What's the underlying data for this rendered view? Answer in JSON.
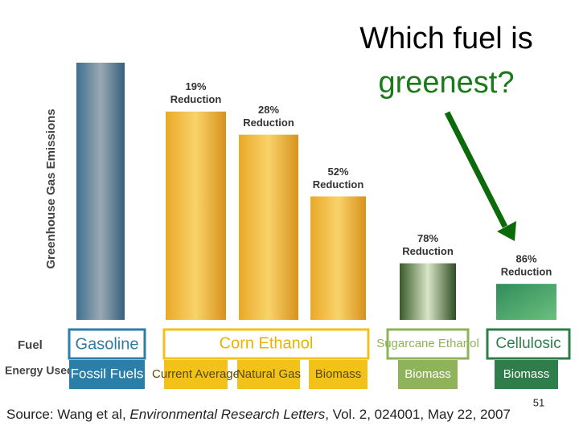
{
  "title": {
    "line1": "Which fuel is",
    "line2": "greenest?"
  },
  "chart_data": {
    "type": "bar",
    "ylabel": "Greenhouse Gas Emissions",
    "row_labels": {
      "fuel": "Fuel",
      "energy": "Energy Used"
    },
    "baseline": {
      "fuel": "Gasoline",
      "energy": "Fossil Fuels"
    },
    "fuels": [
      "Corn Ethanol",
      "Sugarcane Ethanol",
      "Cellulosic"
    ],
    "categories": [
      "Current Average",
      "Natural Gas",
      "Biomass",
      "Biomass",
      "Biomass"
    ],
    "values": [
      19,
      28,
      52,
      78,
      86
    ],
    "value_labels": [
      "19%",
      "28%",
      "52%",
      "78%",
      "86%"
    ],
    "value_suffix": "Reduction"
  },
  "source": {
    "prefix": "Source: Wang et al, ",
    "journal": "Environmental Research Letters",
    "suffix": ", Vol. 2, 024001, May 22, 2007"
  },
  "page_number": "51"
}
